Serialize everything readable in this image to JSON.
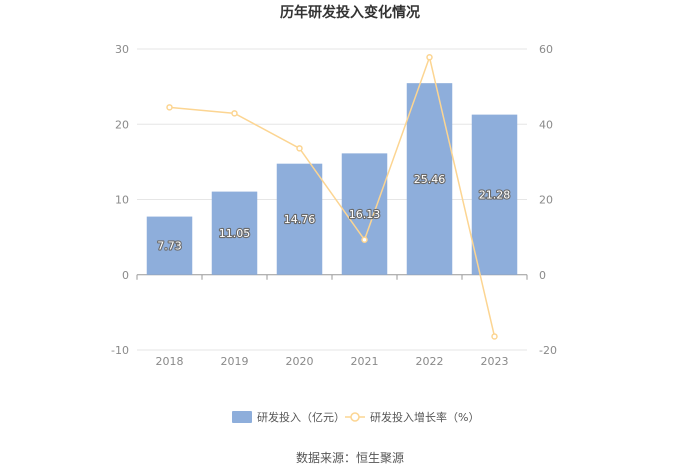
{
  "chart_data": {
    "type": "bar",
    "title": "历年研发投入变化情况",
    "categories": [
      "2018",
      "2019",
      "2020",
      "2021",
      "2022",
      "2023"
    ],
    "series": [
      {
        "name": "研发投入（亿元）",
        "type": "bar",
        "axis": "left",
        "values": [
          7.73,
          11.05,
          14.76,
          16.13,
          25.46,
          21.28
        ],
        "color": "#8eaedb",
        "labels": [
          "7.73",
          "11.05",
          "14.76",
          "16.13",
          "25.46",
          "21.28"
        ]
      },
      {
        "name": "研发投入增长率（%）",
        "type": "line",
        "axis": "right",
        "values": [
          44.5,
          42.9,
          33.6,
          9.3,
          57.8,
          -16.4
        ],
        "color": "#fcd592"
      }
    ],
    "y_left": {
      "ylim": [
        -10,
        30
      ],
      "ticks": [
        "30",
        "20",
        "10",
        "0",
        "-10"
      ]
    },
    "y_right": {
      "ylim": [
        -20,
        60
      ],
      "ticks": [
        "60",
        "40",
        "20",
        "0",
        "-20"
      ]
    },
    "grid": true,
    "legend": "bottom",
    "source": "数据来源：恒生聚源"
  }
}
